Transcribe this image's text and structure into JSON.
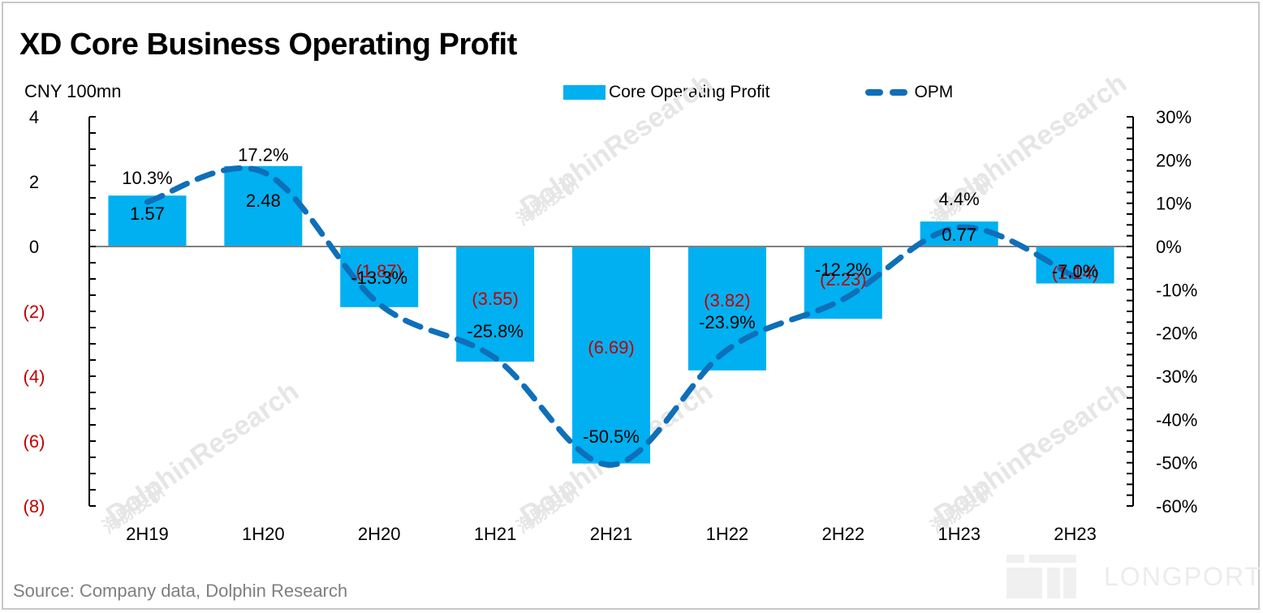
{
  "chart_data": {
    "type": "bar",
    "title": "XD Core Business Operating Profit",
    "ylabel": "CNY 100mn",
    "xlabel": "",
    "categories": [
      "2H19",
      "1H20",
      "2H20",
      "1H21",
      "2H21",
      "1H22",
      "2H22",
      "1H23",
      "2H23"
    ],
    "series": [
      {
        "name": "Core Operating Profit",
        "type": "bar",
        "axis": "left",
        "color": "#00b0f0",
        "values": [
          1.57,
          2.48,
          -1.87,
          -3.55,
          -6.69,
          -3.82,
          -2.23,
          0.77,
          -1.14
        ],
        "labels": [
          "1.57",
          "2.48",
          "(1.87)",
          "(3.55)",
          "(6.69)",
          "(3.82)",
          "(2.23)",
          "0.77",
          "(1.14)"
        ]
      },
      {
        "name": "OPM",
        "type": "line",
        "style": "dashed",
        "axis": "right",
        "color": "#0f6fb9",
        "values": [
          10.3,
          17.2,
          -13.3,
          -25.8,
          -50.5,
          -23.9,
          -12.2,
          4.4,
          -7.0
        ],
        "labels": [
          "10.3%",
          "17.2%",
          "-13.3%",
          "-25.8%",
          "-50.5%",
          "-23.9%",
          "-12.2%",
          "4.4%",
          "-7.0%"
        ]
      }
    ],
    "y_left": {
      "range": [
        -8,
        4
      ],
      "ticks": [
        4,
        2,
        0,
        -2,
        -4,
        -6,
        -8
      ],
      "tick_labels": [
        "4",
        "2",
        "0",
        "(2)",
        "(4)",
        "(6)",
        "(8)"
      ],
      "negative_label_color": "#c00000"
    },
    "y_right": {
      "range": [
        -60,
        30
      ],
      "ticks": [
        30,
        20,
        10,
        0,
        -10,
        -20,
        -30,
        -40,
        -50,
        -60
      ],
      "tick_labels": [
        "30%",
        "20%",
        "10%",
        "0%",
        "-10%",
        "-20%",
        "-30%",
        "-40%",
        "-50%",
        "-60%"
      ]
    },
    "grid": false,
    "legend": "top-right",
    "negative_value_color": "#c00000"
  },
  "header": {
    "title": "XD Core Business Operating Profit",
    "unit_label": "CNY 100mn"
  },
  "legend": {
    "bar_label": "Core Operating Profit",
    "line_label": "OPM"
  },
  "footer": {
    "source": "Source:  Company data, Dolphin Research"
  },
  "watermarks": {
    "brand_cn": "海豚投研",
    "brand_en": "DolphinResearch",
    "logo_text": "LONGPORT"
  }
}
